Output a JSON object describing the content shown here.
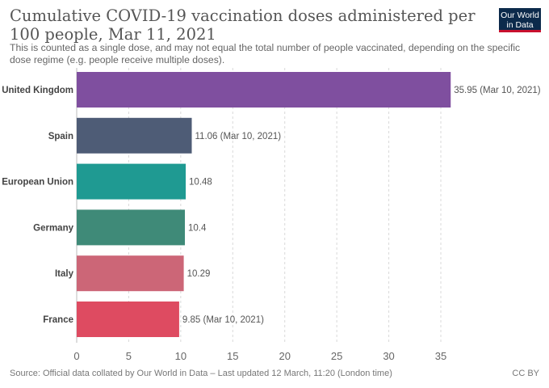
{
  "header": {
    "title": "Cumulative COVID-19 vaccination doses administered per 100 people, Mar 11, 2021",
    "subtitle": "This is counted as a single dose, and may not equal the total number of people vaccinated, depending on the specific dose regime (e.g. people receive multiple doses).",
    "logo_line1": "Our World",
    "logo_line2": "in Data",
    "logo_colors": {
      "background": "#0c2a4b",
      "accent": "#c8102e"
    }
  },
  "footer": {
    "source": "Source: Official data collated by Our World in Data – Last updated 12 March, 11:20 (London time)",
    "license": "CC BY"
  },
  "chart_data": {
    "type": "bar",
    "orientation": "horizontal",
    "title": "Cumulative COVID-19 vaccination doses administered per 100 people, Mar 11, 2021",
    "xlim": [
      0,
      35
    ],
    "xticks": [
      0,
      5,
      10,
      15,
      20,
      25,
      30,
      35
    ],
    "grid": true,
    "categories": [
      "United Kingdom",
      "Spain",
      "European Union",
      "Germany",
      "Italy",
      "France"
    ],
    "values": [
      35.95,
      11.06,
      10.48,
      10.4,
      10.29,
      9.85
    ],
    "value_labels": [
      "35.95 (Mar 10, 2021)",
      "11.06 (Mar 10, 2021)",
      "10.48",
      "10.4",
      "10.29",
      "9.85 (Mar 10, 2021)"
    ],
    "colors": [
      "#7f4f9f",
      "#4e5c76",
      "#1f9a92",
      "#3f8a78",
      "#cc6677",
      "#de4b61"
    ]
  }
}
